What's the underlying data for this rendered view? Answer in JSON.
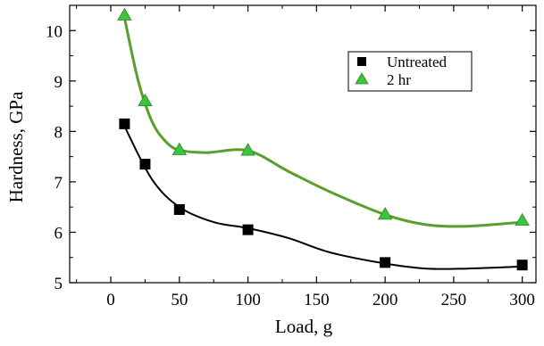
{
  "chart_data": {
    "type": "scatter",
    "title": "",
    "xlabel": "Load, g",
    "ylabel": "Hardness, GPa",
    "xlim": [
      -30,
      310
    ],
    "ylim": [
      5,
      10.5
    ],
    "xticks": [
      0,
      50,
      100,
      150,
      200,
      250,
      300
    ],
    "yticks": [
      5,
      6,
      7,
      8,
      9,
      10
    ],
    "grid": false,
    "legend_position": "top-right",
    "series": [
      {
        "name": "Untreated",
        "marker": "square",
        "color": "#000000",
        "line_color": "#000000",
        "x": [
          10,
          25,
          50,
          100,
          200,
          300
        ],
        "y": [
          8.15,
          7.35,
          6.45,
          6.05,
          5.4,
          5.35
        ],
        "fit_curve": {
          "x": [
            10,
            30,
            50,
            75,
            100,
            130,
            160,
            200,
            230,
            260,
            300
          ],
          "y": [
            8.1,
            7.05,
            6.5,
            6.2,
            6.08,
            5.88,
            5.6,
            5.38,
            5.28,
            5.28,
            5.32
          ]
        }
      },
      {
        "name": "2 hr",
        "marker": "triangle",
        "color": "#3cc43c",
        "line_color": "#5c9e2c",
        "x": [
          10,
          25,
          50,
          100,
          200,
          300
        ],
        "y": [
          10.3,
          8.6,
          7.63,
          7.62,
          6.35,
          6.23
        ],
        "fit_curve": {
          "x": [
            10,
            20,
            30,
            40,
            50,
            70,
            100,
            130,
            160,
            200,
            230,
            260,
            300
          ],
          "y": [
            10.25,
            9.0,
            8.2,
            7.8,
            7.63,
            7.58,
            7.62,
            7.2,
            6.8,
            6.35,
            6.15,
            6.12,
            6.2
          ]
        }
      }
    ]
  }
}
